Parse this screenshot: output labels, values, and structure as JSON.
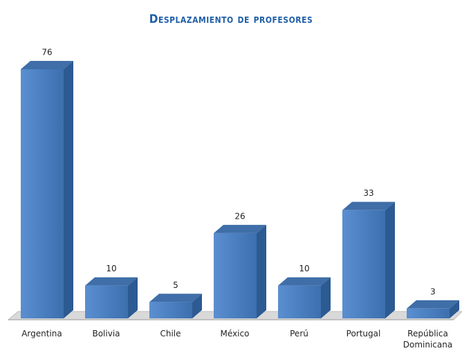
{
  "chart_data": {
    "type": "bar3d",
    "title": "Desplazamiento de profesores",
    "categories": [
      "Argentina",
      "Bolivia",
      "Chile",
      "México",
      "Perú",
      "Portugal",
      "República Dominicana"
    ],
    "values": [
      76,
      10,
      5,
      26,
      10,
      33,
      3
    ],
    "color": "#4f81bd"
  }
}
